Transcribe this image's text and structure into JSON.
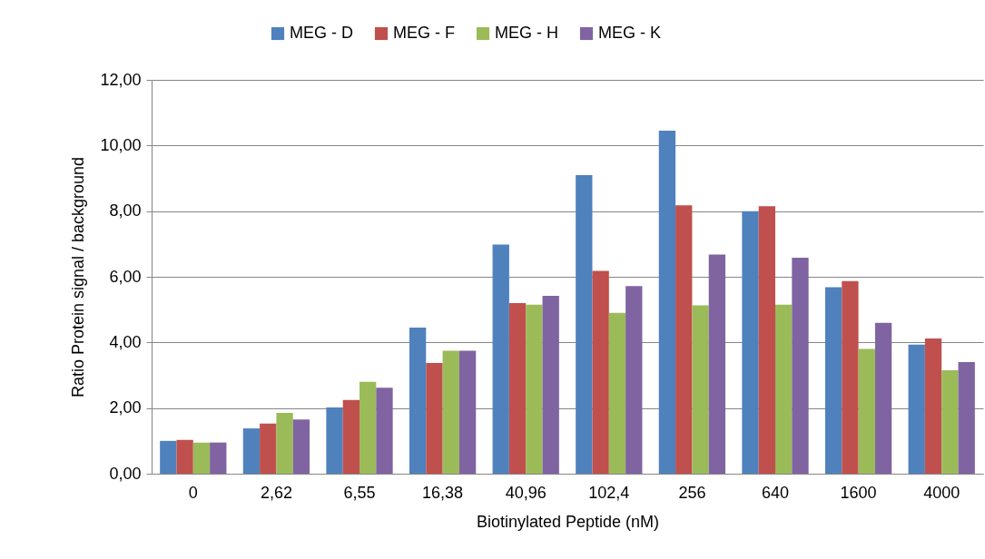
{
  "chart_data": {
    "type": "bar",
    "xlabel": "Biotinylated Peptide (nM)",
    "ylabel": "Ratio Protein signal / background",
    "categories": [
      "0",
      "2,62",
      "6,55",
      "16,38",
      "40,96",
      "102,4",
      "256",
      "640",
      "1600",
      "4000"
    ],
    "series": [
      {
        "name": "MEG - D",
        "color": "#4f81bd",
        "values": [
          1.0,
          1.38,
          2.02,
          4.45,
          6.98,
          9.1,
          10.45,
          8.0,
          5.68,
          3.93
        ]
      },
      {
        "name": "MEG - F",
        "color": "#c0504d",
        "values": [
          1.03,
          1.53,
          2.25,
          3.37,
          5.2,
          6.18,
          8.18,
          8.15,
          5.87,
          4.12
        ]
      },
      {
        "name": "MEG - H",
        "color": "#9bbb59",
        "values": [
          0.95,
          1.85,
          2.8,
          3.75,
          5.15,
          4.9,
          5.13,
          5.15,
          3.8,
          3.15
        ]
      },
      {
        "name": "MEG - K",
        "color": "#8064a2",
        "values": [
          0.95,
          1.65,
          2.62,
          3.75,
          5.42,
          5.72,
          6.68,
          6.58,
          4.6,
          3.4
        ]
      }
    ],
    "ylim": [
      0,
      12
    ],
    "yticks": [
      {
        "value": 0,
        "label": "0,00"
      },
      {
        "value": 2,
        "label": "2,00"
      },
      {
        "value": 4,
        "label": "4,00"
      },
      {
        "value": 6,
        "label": "6,00"
      },
      {
        "value": 8,
        "label": "8,00"
      },
      {
        "value": 10,
        "label": "10,00"
      },
      {
        "value": 12,
        "label": "12,00"
      }
    ],
    "grid": "y",
    "legend": "top"
  }
}
